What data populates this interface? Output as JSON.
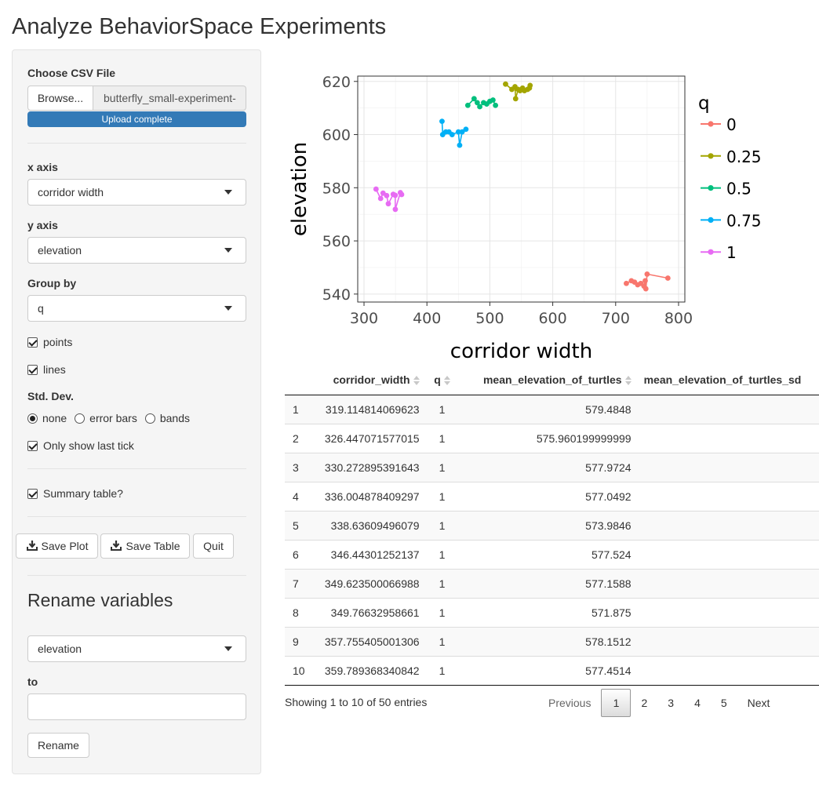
{
  "app": {
    "title": "Analyze BehaviorSpace Experiments"
  },
  "sidebar": {
    "csv_label": "Choose CSV File",
    "browse_label": "Browse...",
    "file_name": "butterfly_small-experiment-",
    "upload_status": "Upload complete",
    "upload_progress": 1.0,
    "x_axis_label": "x axis",
    "x_axis_value": "corridor width",
    "y_axis_label": "y axis",
    "y_axis_value": "elevation",
    "group_label": "Group by",
    "group_value": "q",
    "points_label": "points",
    "points_checked": true,
    "lines_label": "lines",
    "lines_checked": true,
    "std_label": "Std. Dev.",
    "std_options": [
      "none",
      "error bars",
      "bands"
    ],
    "std_selected": "none",
    "last_tick_label": "Only show last tick",
    "last_tick_checked": true,
    "summary_label": "Summary table?",
    "summary_checked": true,
    "save_plot_label": "Save Plot",
    "save_table_label": "Save Table",
    "quit_label": "Quit",
    "rename_title": "Rename variables",
    "rename_select_value": "elevation",
    "to_label": "to",
    "to_value": "",
    "rename_button_label": "Rename"
  },
  "chart_data": {
    "type": "line",
    "xlabel": "corridor width",
    "ylabel": "elevation",
    "xlim": [
      290,
      810
    ],
    "ylim": [
      537,
      622
    ],
    "x_ticks": [
      "300",
      "400",
      "500",
      "600",
      "700",
      "800"
    ],
    "y_ticks": [
      "540",
      "560",
      "580",
      "600",
      "620"
    ],
    "grid": true,
    "legend_title": "q",
    "legend_position": "right",
    "series": [
      {
        "name": "0",
        "color": "#F8766D",
        "points": [
          [
            717,
            544
          ],
          [
            725,
            545
          ],
          [
            730,
            544.5
          ],
          [
            735,
            543.5
          ],
          [
            740,
            544
          ],
          [
            745,
            543
          ],
          [
            747,
            545
          ],
          [
            748,
            542
          ],
          [
            750,
            547.5
          ],
          [
            783,
            546
          ]
        ]
      },
      {
        "name": "0.25",
        "color": "#A3A500",
        "points": [
          [
            525,
            619
          ],
          [
            535,
            617
          ],
          [
            540,
            618
          ],
          [
            541,
            613.5
          ],
          [
            545,
            617
          ],
          [
            548,
            616.5
          ],
          [
            552,
            617.5
          ],
          [
            555,
            616.5
          ],
          [
            560,
            617
          ],
          [
            563,
            617.5
          ],
          [
            564,
            618.5
          ]
        ]
      },
      {
        "name": "0.5",
        "color": "#00BF7D",
        "points": [
          [
            465,
            611
          ],
          [
            475,
            613.5
          ],
          [
            480,
            612
          ],
          [
            484,
            610.5
          ],
          [
            490,
            612
          ],
          [
            495,
            611.5
          ],
          [
            500,
            612.5
          ],
          [
            505,
            613
          ],
          [
            509,
            611
          ]
        ]
      },
      {
        "name": "0.75",
        "color": "#00B0F6",
        "points": [
          [
            424,
            605
          ],
          [
            425,
            600
          ],
          [
            430,
            601
          ],
          [
            435,
            601
          ],
          [
            440,
            600
          ],
          [
            450,
            601
          ],
          [
            452,
            596
          ],
          [
            456,
            601
          ],
          [
            462,
            602
          ]
        ]
      },
      {
        "name": "1",
        "color": "#E76BF3",
        "points": [
          [
            319.11,
            579.48
          ],
          [
            326.45,
            575.96
          ],
          [
            330.27,
            577.97
          ],
          [
            336.0,
            577.05
          ],
          [
            338.64,
            573.98
          ],
          [
            346.44,
            577.52
          ],
          [
            349.62,
            577.16
          ],
          [
            349.77,
            571.88
          ],
          [
            357.76,
            578.15
          ],
          [
            359.79,
            577.45
          ]
        ]
      }
    ]
  },
  "table": {
    "columns": [
      "",
      "corridor_width",
      "q",
      "mean_elevation_of_turtles",
      "mean_elevation_of_turtles_sd"
    ],
    "rows": [
      [
        "1",
        "319.114814069623",
        "1",
        "579.4848",
        ""
      ],
      [
        "2",
        "326.447071577015",
        "1",
        "575.960199999999",
        ""
      ],
      [
        "3",
        "330.272895391643",
        "1",
        "577.9724",
        ""
      ],
      [
        "4",
        "336.004878409297",
        "1",
        "577.0492",
        ""
      ],
      [
        "5",
        "338.63609496079",
        "1",
        "573.9846",
        ""
      ],
      [
        "6",
        "346.44301252137",
        "1",
        "577.524",
        ""
      ],
      [
        "7",
        "349.623500066988",
        "1",
        "577.1588",
        ""
      ],
      [
        "8",
        "349.76632958661",
        "1",
        "571.875",
        ""
      ],
      [
        "9",
        "357.755405001306",
        "1",
        "578.1512",
        ""
      ],
      [
        "10",
        "359.789368340842",
        "1",
        "577.4514",
        ""
      ]
    ],
    "info": "Showing 1 to 10 of 50 entries",
    "pager": {
      "previous": "Previous",
      "pages": [
        "1",
        "2",
        "3",
        "4",
        "5"
      ],
      "current": "1",
      "next": "Next"
    }
  }
}
